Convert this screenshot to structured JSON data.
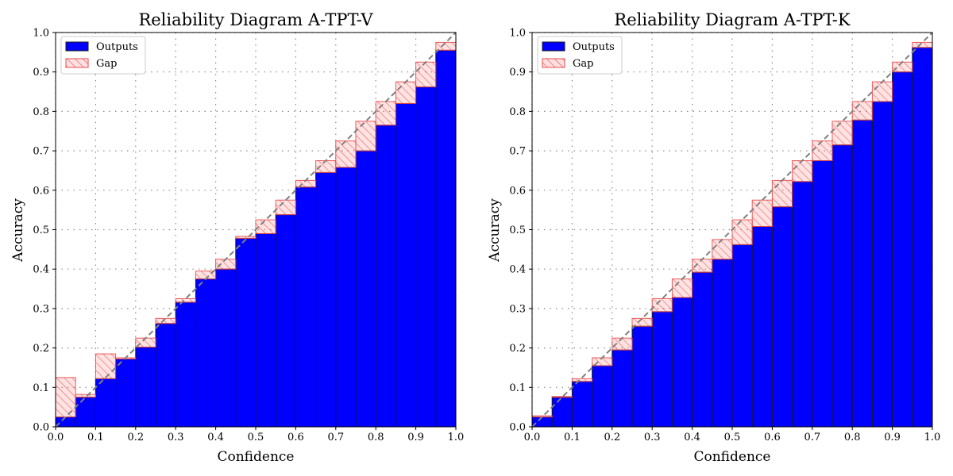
{
  "chart_data": [
    {
      "type": "bar",
      "title": "Reliability Diagram A-TPT-V",
      "xlabel": "Confidence",
      "ylabel": "Accuracy",
      "xlim": [
        0,
        1
      ],
      "ylim": [
        0,
        1
      ],
      "xticks": [
        "0.0",
        "0.1",
        "0.2",
        "0.3",
        "0.4",
        "0.5",
        "0.6",
        "0.7",
        "0.8",
        "0.9",
        "1.0"
      ],
      "yticks": [
        "0.0",
        "0.1",
        "0.2",
        "0.3",
        "0.4",
        "0.5",
        "0.6",
        "0.7",
        "0.8",
        "0.9",
        "1.0"
      ],
      "grid": true,
      "legend_position": "top-left",
      "legend": [
        "Outputs",
        "Gap"
      ],
      "bin_edges": [
        0,
        0.05,
        0.1,
        0.15,
        0.2,
        0.25,
        0.3,
        0.35,
        0.4,
        0.45,
        0.5,
        0.55,
        0.6,
        0.65,
        0.7,
        0.75,
        0.8,
        0.85,
        0.9,
        0.95,
        1.0
      ],
      "series": [
        {
          "name": "Outputs",
          "values": [
            0.025,
            0.075,
            0.122,
            0.172,
            0.202,
            0.262,
            0.316,
            0.375,
            0.4,
            0.478,
            0.49,
            0.538,
            0.608,
            0.645,
            0.658,
            0.7,
            0.765,
            0.82,
            0.862,
            0.955
          ]
        },
        {
          "name": "Gap",
          "values": [
            0.125,
            0.082,
            0.185,
            0.175,
            0.225,
            0.275,
            0.325,
            0.395,
            0.425,
            0.483,
            0.525,
            0.575,
            0.625,
            0.675,
            0.725,
            0.775,
            0.825,
            0.875,
            0.925,
            0.975
          ]
        }
      ],
      "diagonal": "perfect calibration"
    },
    {
      "type": "bar",
      "title": "Reliability Diagram A-TPT-K",
      "xlabel": "Confidence",
      "ylabel": "Accuracy",
      "xlim": [
        0,
        1
      ],
      "ylim": [
        0,
        1
      ],
      "xticks": [
        "0.0",
        "0.1",
        "0.2",
        "0.3",
        "0.4",
        "0.5",
        "0.6",
        "0.7",
        "0.8",
        "0.9",
        "1.0"
      ],
      "yticks": [
        "0.0",
        "0.1",
        "0.2",
        "0.3",
        "0.4",
        "0.5",
        "0.6",
        "0.7",
        "0.8",
        "0.9",
        "1.0"
      ],
      "grid": true,
      "legend_position": "top-left",
      "legend": [
        "Outputs",
        "Gap"
      ],
      "bin_edges": [
        0,
        0.05,
        0.1,
        0.15,
        0.2,
        0.25,
        0.3,
        0.35,
        0.4,
        0.45,
        0.5,
        0.55,
        0.6,
        0.65,
        0.7,
        0.75,
        0.8,
        0.85,
        0.9,
        0.95,
        1.0
      ],
      "series": [
        {
          "name": "Outputs",
          "values": [
            0.025,
            0.075,
            0.115,
            0.155,
            0.195,
            0.255,
            0.292,
            0.328,
            0.392,
            0.425,
            0.462,
            0.508,
            0.558,
            0.622,
            0.675,
            0.715,
            0.778,
            0.825,
            0.9,
            0.962
          ]
        },
        {
          "name": "Gap",
          "values": [
            0.028,
            0.077,
            0.122,
            0.175,
            0.225,
            0.275,
            0.325,
            0.375,
            0.425,
            0.475,
            0.525,
            0.575,
            0.625,
            0.675,
            0.725,
            0.775,
            0.825,
            0.875,
            0.925,
            0.975
          ]
        }
      ],
      "diagonal": "perfect calibration"
    }
  ],
  "colors": {
    "outputs_fill": "#0000ff",
    "outputs_edge": "#1a1a1a",
    "gap_fill": "#ff0000",
    "gap_edge": "#e84a4a",
    "diagonal": "#808080",
    "grid": "#8c8c8c"
  }
}
